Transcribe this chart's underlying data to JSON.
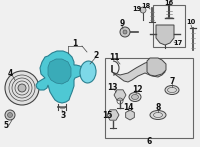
{
  "bg_color": "#f0f0f0",
  "part_color": "#4ec8d4",
  "part_edge_color": "#2a8090",
  "line_color": "#444444",
  "label_color": "#111111",
  "fig_w": 2.0,
  "fig_h": 1.47,
  "dpi": 100
}
